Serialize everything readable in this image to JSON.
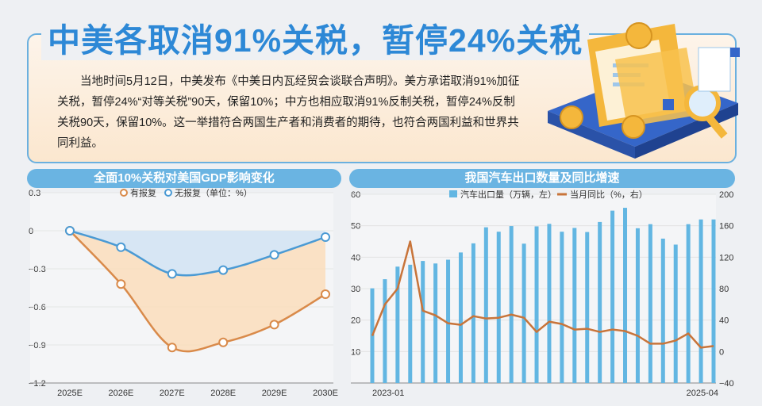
{
  "header": {
    "title": "中美各取消91%关税，暂停24%关税",
    "intro": "当地时间5月12日，中美发布《中美日内瓦经贸会谈联合声明》。美方承诺取消91%加征关税，暂停24%“对等关税”90天，保留10%；中方也相应取消91%反制关税，暂停24%反制关税90天，保留10%。这一举措符合两国生产者和消费者的期待，也符合两国利益和世界共同利益。"
  },
  "chart_data": [
    {
      "type": "line",
      "title": "全面10%关税对美国GDP影响变化",
      "legend_note": "（单位：%）",
      "categories": [
        "2025E",
        "2026E",
        "2027E",
        "2028E",
        "2029E",
        "2030E"
      ],
      "series": [
        {
          "name": "有报复",
          "values": [
            0,
            -0.42,
            -0.92,
            -0.88,
            -0.74,
            -0.5
          ],
          "color": "#d98a4a"
        },
        {
          "name": "无报复",
          "values": [
            0,
            -0.13,
            -0.34,
            -0.31,
            -0.19,
            -0.05
          ],
          "color": "#4a9ad4"
        }
      ],
      "y_ticks": [
        "0.3",
        "0",
        "−0.3",
        "−0.6",
        "−0.9",
        "−1.2"
      ],
      "ylim": [
        -1.2,
        0.3
      ],
      "grid": true
    },
    {
      "type": "bar+line",
      "title": "我国汽车出口数量及同比增速",
      "x_labels": {
        "start": "2023-01",
        "end": "2025-04"
      },
      "bars": {
        "name": "汽车出口量（万辆，左）",
        "color": "#62b6e2",
        "values": [
          30.1,
          33.0,
          37.0,
          37.6,
          38.8,
          38.0,
          39.2,
          41.5,
          44.4,
          49.5,
          48.1,
          49.9,
          44.3,
          49.8,
          50.6,
          48.1,
          49.3,
          48.0,
          51.2,
          54.8,
          55.7,
          49.2,
          50.5,
          45.9,
          44.0,
          50.5,
          52.0,
          52.0
        ]
      },
      "line": {
        "name": "当月同比（%，右）",
        "color": "#c8743a",
        "values": [
          20,
          60,
          80,
          140,
          52,
          46,
          36,
          34,
          45,
          42,
          43,
          47,
          43,
          25,
          38,
          35,
          28,
          29,
          25,
          28,
          26,
          20,
          10,
          10,
          14,
          23,
          5,
          7
        ]
      },
      "y_left_ticks": [
        "60",
        "50",
        "40",
        "30",
        "20",
        "10"
      ],
      "y_right_ticks": [
        "200",
        "160",
        "120",
        "80",
        "40",
        "0",
        "−40"
      ],
      "ylim_left": [
        0,
        60
      ],
      "ylim_right": [
        -40,
        200
      ],
      "grid": true
    }
  ],
  "colors": {
    "accent": "#2d88d6",
    "title_bar": "#6ab4e2",
    "orange": "#d98a4a",
    "blue": "#4a9ad4"
  },
  "icons": [
    "folder-icon",
    "coin-icon",
    "magnifier-icon",
    "document-icon"
  ]
}
